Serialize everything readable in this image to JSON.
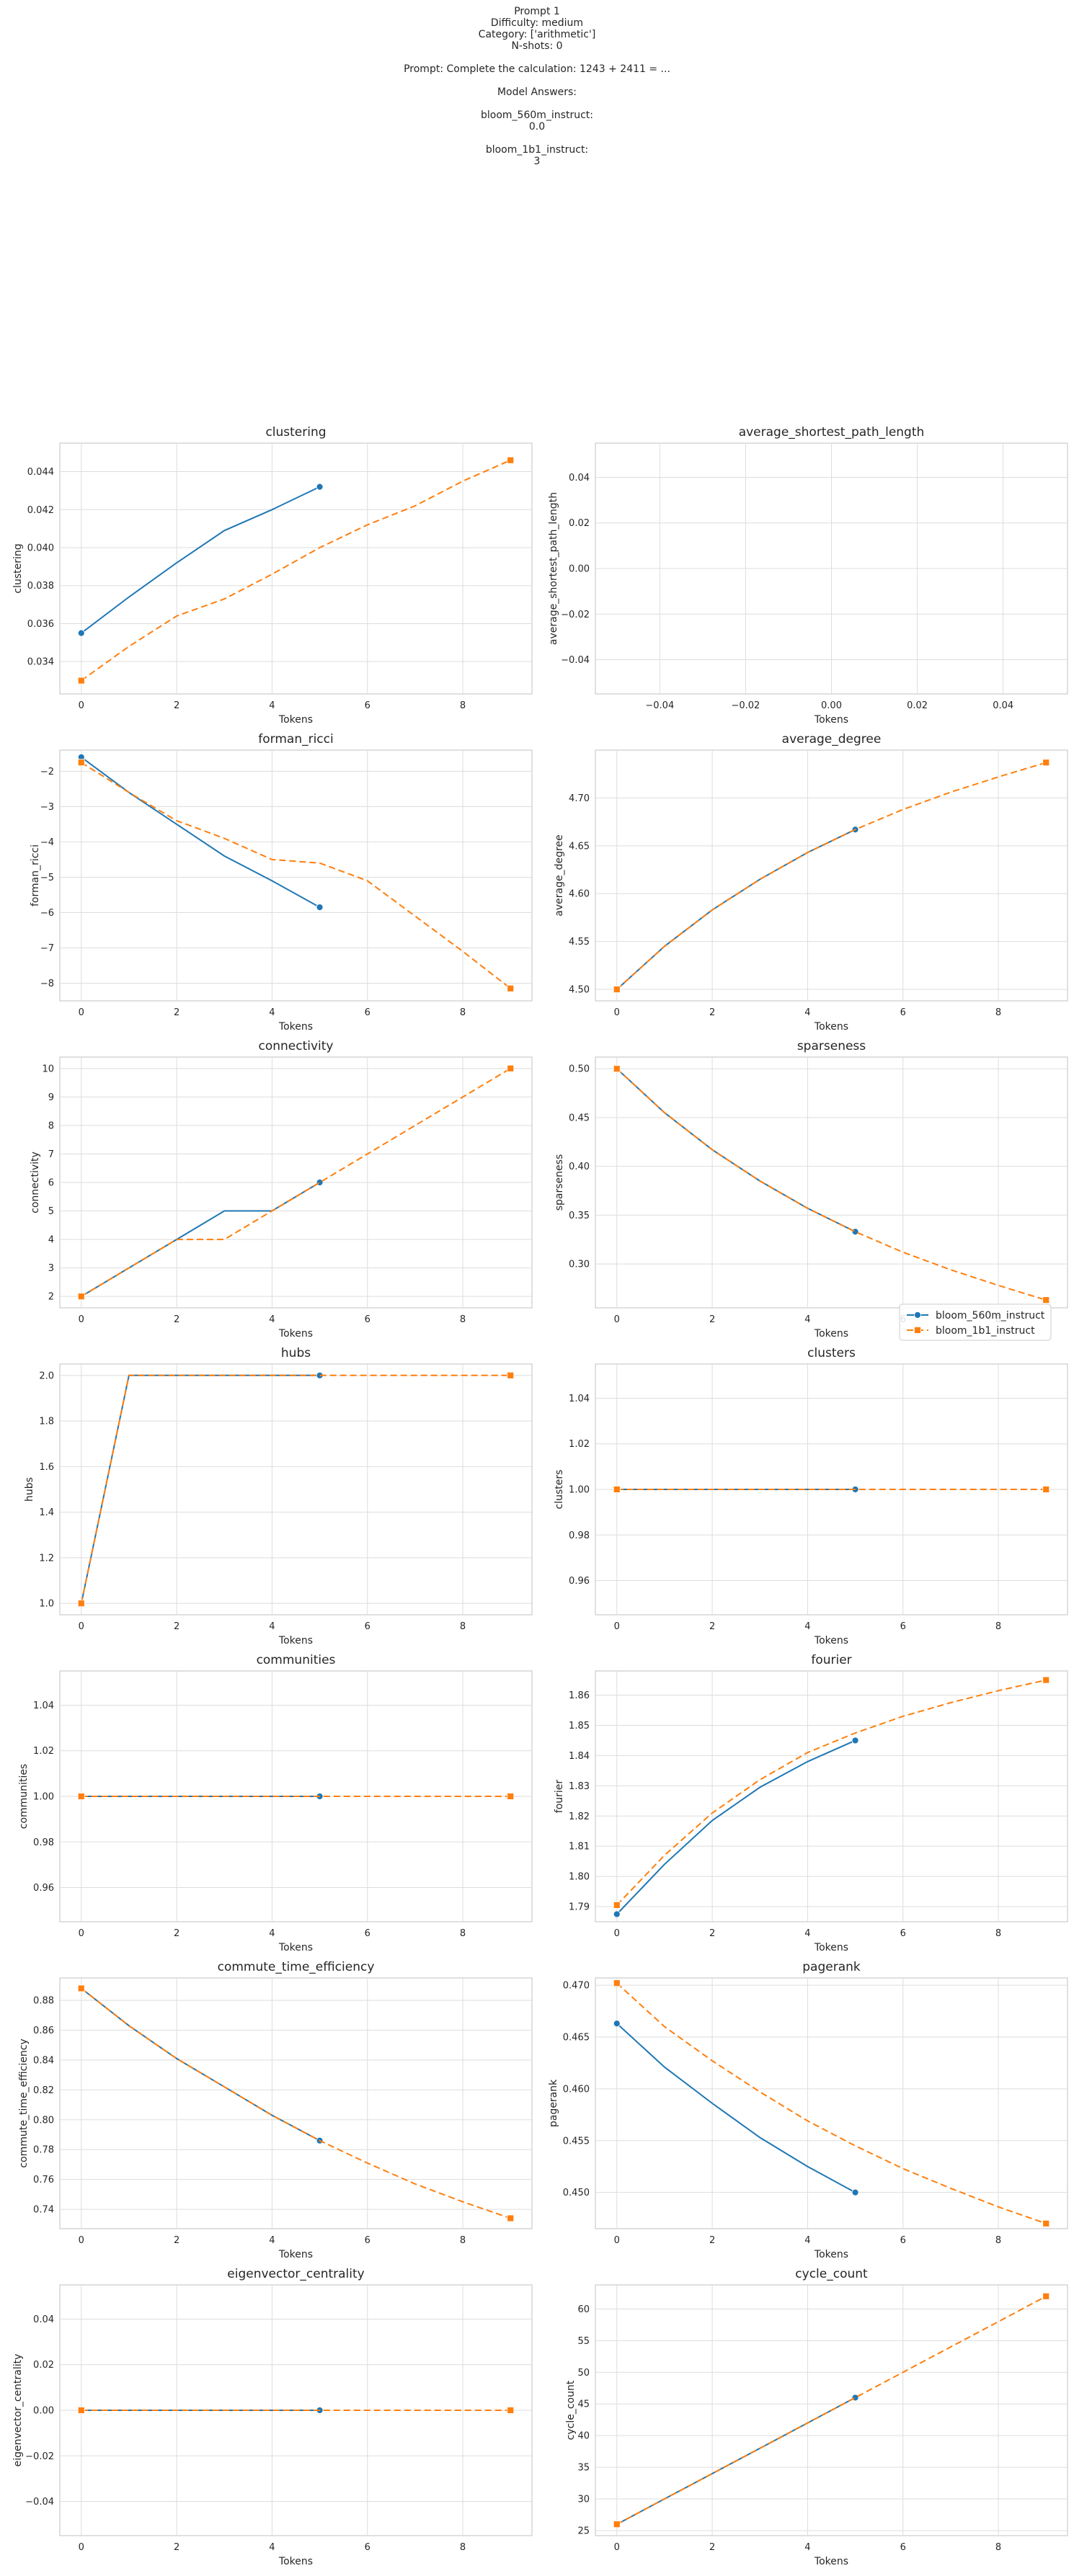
{
  "header": {
    "line1": "Prompt 1",
    "line2": "Difficulty: medium",
    "line3": "Category: ['arithmetic']",
    "line4": "N-shots: 0",
    "line5": "Prompt: Complete the calculation: 1243 + 2411 = ...",
    "line6": "Model Answers:",
    "line7": "bloom_560m_instruct:",
    "line8": "0.0",
    "line9": "bloom_1b1_instruct:",
    "line10": "3"
  },
  "colors": {
    "series1": "#1f77b4",
    "series2": "#ff7f0e",
    "grid": "#dddddd",
    "axes_border": "#cccccc"
  },
  "legend": {
    "placement": "lower-right of sparseness",
    "entries": [
      "bloom_560m_instruct",
      "bloom_1b1_instruct"
    ]
  },
  "chart_data": [
    {
      "type": "line",
      "title": "clustering",
      "xlabel": "Tokens",
      "ylabel": "clustering",
      "xlim": [
        -0.45,
        9.45
      ],
      "ylim": [
        0.0323,
        0.0455
      ],
      "xticks": [
        0,
        2,
        4,
        6,
        8
      ],
      "yticks": [
        0.034,
        0.036,
        0.038,
        0.04,
        0.042,
        0.044
      ],
      "yticklabels": [
        "0.034",
        "0.036",
        "0.038",
        "0.040",
        "0.042",
        "0.044"
      ],
      "series": [
        {
          "name": "bloom_560m_instruct",
          "x": [
            0,
            1,
            2,
            3,
            4,
            5
          ],
          "y": [
            0.0355,
            0.0374,
            0.0392,
            0.0409,
            0.042,
            0.0432
          ]
        },
        {
          "name": "bloom_1b1_instruct",
          "x": [
            0,
            1,
            2,
            3,
            4,
            5,
            6,
            7,
            8,
            9
          ],
          "y": [
            0.033,
            0.0348,
            0.0364,
            0.0373,
            0.0386,
            0.04,
            0.0412,
            0.0422,
            0.0435,
            0.0446
          ]
        }
      ]
    },
    {
      "type": "line",
      "title": "average_shortest_path_length",
      "xlabel": "Tokens",
      "ylabel": "average_shortest_path_length",
      "xlim": [
        -0.055,
        0.055
      ],
      "ylim": [
        -0.055,
        0.055
      ],
      "xticks": [
        -0.04,
        -0.02,
        0,
        0.02,
        0.04
      ],
      "xticklabels": [
        "−0.04",
        "−0.02",
        "0.00",
        "0.02",
        "0.04"
      ],
      "yticks": [
        -0.04,
        -0.02,
        0,
        0.02,
        0.04
      ],
      "yticklabels": [
        "−0.04",
        "−0.02",
        "0.00",
        "0.02",
        "0.04"
      ],
      "series": []
    },
    {
      "type": "line",
      "title": "forman_ricci",
      "xlabel": "Tokens",
      "ylabel": "forman_ricci",
      "xlim": [
        -0.45,
        9.45
      ],
      "ylim": [
        -8.5,
        -1.4
      ],
      "xticks": [
        0,
        2,
        4,
        6,
        8
      ],
      "yticks": [
        -8,
        -7,
        -6,
        -5,
        -4,
        -3,
        -2
      ],
      "yticklabels": [
        "−8",
        "−7",
        "−6",
        "−5",
        "−4",
        "−3",
        "−2"
      ],
      "series": [
        {
          "name": "bloom_560m_instruct",
          "x": [
            0,
            1,
            2,
            3,
            4,
            5
          ],
          "y": [
            -1.6,
            -2.6,
            -3.5,
            -4.4,
            -5.1,
            -5.85
          ]
        },
        {
          "name": "bloom_1b1_instruct",
          "x": [
            0,
            1,
            2,
            3,
            4,
            5,
            6,
            7,
            8,
            9
          ],
          "y": [
            -1.75,
            -2.6,
            -3.4,
            -3.9,
            -4.5,
            -4.6,
            -5.1,
            -6.1,
            -7.1,
            -8.15
          ]
        }
      ]
    },
    {
      "type": "line",
      "title": "average_degree",
      "xlabel": "Tokens",
      "ylabel": "average_degree",
      "xlim": [
        -0.45,
        9.45
      ],
      "ylim": [
        4.488,
        4.75
      ],
      "xticks": [
        0,
        2,
        4,
        6,
        8
      ],
      "yticks": [
        4.5,
        4.55,
        4.6,
        4.65,
        4.7
      ],
      "yticklabels": [
        "4.50",
        "4.55",
        "4.60",
        "4.65",
        "4.70"
      ],
      "series": [
        {
          "name": "bloom_560m_instruct",
          "x": [
            0,
            1,
            2,
            3,
            4,
            5
          ],
          "y": [
            4.5,
            4.545,
            4.583,
            4.615,
            4.643,
            4.667
          ]
        },
        {
          "name": "bloom_1b1_instruct",
          "x": [
            0,
            1,
            2,
            3,
            4,
            5,
            6,
            7,
            8,
            9
          ],
          "y": [
            4.5,
            4.545,
            4.583,
            4.615,
            4.643,
            4.667,
            4.688,
            4.706,
            4.722,
            4.737
          ]
        }
      ]
    },
    {
      "type": "line",
      "title": "connectivity",
      "xlabel": "Tokens",
      "ylabel": "connectivity",
      "xlim": [
        -0.45,
        9.45
      ],
      "ylim": [
        1.6,
        10.4
      ],
      "xticks": [
        0,
        2,
        4,
        6,
        8
      ],
      "yticks": [
        2,
        3,
        4,
        5,
        6,
        7,
        8,
        9,
        10
      ],
      "series": [
        {
          "name": "bloom_560m_instruct",
          "x": [
            0,
            1,
            2,
            3,
            4,
            5
          ],
          "y": [
            2,
            3,
            4,
            5,
            5,
            6
          ]
        },
        {
          "name": "bloom_1b1_instruct",
          "x": [
            0,
            1,
            2,
            3,
            4,
            5,
            6,
            7,
            8,
            9
          ],
          "y": [
            2,
            3,
            4,
            4,
            5,
            6,
            7,
            8,
            9,
            10
          ]
        }
      ]
    },
    {
      "type": "line",
      "title": "sparseness",
      "xlabel": "Tokens",
      "ylabel": "sparseness",
      "xlim": [
        -0.45,
        9.45
      ],
      "ylim": [
        0.255,
        0.512
      ],
      "xticks": [
        0,
        2,
        4,
        6,
        8
      ],
      "yticks": [
        0.3,
        0.35,
        0.4,
        0.45,
        0.5
      ],
      "yticklabels": [
        "0.30",
        "0.35",
        "0.40",
        "0.45",
        "0.50"
      ],
      "series": [
        {
          "name": "bloom_560m_instruct",
          "x": [
            0,
            1,
            2,
            3,
            4,
            5
          ],
          "y": [
            0.5,
            0.455,
            0.417,
            0.385,
            0.357,
            0.333
          ]
        },
        {
          "name": "bloom_1b1_instruct",
          "x": [
            0,
            1,
            2,
            3,
            4,
            5,
            6,
            7,
            8,
            9
          ],
          "y": [
            0.5,
            0.455,
            0.417,
            0.385,
            0.357,
            0.333,
            0.312,
            0.294,
            0.278,
            0.263
          ]
        }
      ]
    },
    {
      "type": "line",
      "title": "hubs",
      "xlabel": "Tokens",
      "ylabel": "hubs",
      "xlim": [
        -0.45,
        9.45
      ],
      "ylim": [
        0.95,
        2.05
      ],
      "xticks": [
        0,
        2,
        4,
        6,
        8
      ],
      "yticks": [
        1.0,
        1.2,
        1.4,
        1.6,
        1.8,
        2.0
      ],
      "yticklabels": [
        "1.0",
        "1.2",
        "1.4",
        "1.6",
        "1.8",
        "2.0"
      ],
      "series": [
        {
          "name": "bloom_560m_instruct",
          "x": [
            0,
            1,
            2,
            3,
            4,
            5
          ],
          "y": [
            1,
            2,
            2,
            2,
            2,
            2
          ]
        },
        {
          "name": "bloom_1b1_instruct",
          "x": [
            0,
            1,
            2,
            3,
            4,
            5,
            6,
            7,
            8,
            9
          ],
          "y": [
            1,
            2,
            2,
            2,
            2,
            2,
            2,
            2,
            2,
            2
          ]
        }
      ]
    },
    {
      "type": "line",
      "title": "clusters",
      "xlabel": "Tokens",
      "ylabel": "clusters",
      "xlim": [
        -0.45,
        9.45
      ],
      "ylim": [
        0.945,
        1.055
      ],
      "xticks": [
        0,
        2,
        4,
        6,
        8
      ],
      "yticks": [
        0.96,
        0.98,
        1.0,
        1.02,
        1.04
      ],
      "yticklabels": [
        "0.96",
        "0.98",
        "1.00",
        "1.02",
        "1.04"
      ],
      "series": [
        {
          "name": "bloom_560m_instruct",
          "x": [
            0,
            1,
            2,
            3,
            4,
            5
          ],
          "y": [
            1,
            1,
            1,
            1,
            1,
            1
          ]
        },
        {
          "name": "bloom_1b1_instruct",
          "x": [
            0,
            1,
            2,
            3,
            4,
            5,
            6,
            7,
            8,
            9
          ],
          "y": [
            1,
            1,
            1,
            1,
            1,
            1,
            1,
            1,
            1,
            1
          ]
        }
      ]
    },
    {
      "type": "line",
      "title": "communities",
      "xlabel": "Tokens",
      "ylabel": "communities",
      "xlim": [
        -0.45,
        9.45
      ],
      "ylim": [
        0.945,
        1.055
      ],
      "xticks": [
        0,
        2,
        4,
        6,
        8
      ],
      "yticks": [
        0.96,
        0.98,
        1.0,
        1.02,
        1.04
      ],
      "yticklabels": [
        "0.96",
        "0.98",
        "1.00",
        "1.02",
        "1.04"
      ],
      "series": [
        {
          "name": "bloom_560m_instruct",
          "x": [
            0,
            1,
            2,
            3,
            4,
            5
          ],
          "y": [
            1,
            1,
            1,
            1,
            1,
            1
          ]
        },
        {
          "name": "bloom_1b1_instruct",
          "x": [
            0,
            1,
            2,
            3,
            4,
            5,
            6,
            7,
            8,
            9
          ],
          "y": [
            1,
            1,
            1,
            1,
            1,
            1,
            1,
            1,
            1,
            1
          ]
        }
      ]
    },
    {
      "type": "line",
      "title": "fourier",
      "xlabel": "Tokens",
      "ylabel": "fourier",
      "xlim": [
        -0.45,
        9.45
      ],
      "ylim": [
        1.785,
        1.868
      ],
      "xticks": [
        0,
        2,
        4,
        6,
        8
      ],
      "yticks": [
        1.79,
        1.8,
        1.81,
        1.82,
        1.83,
        1.84,
        1.85,
        1.86
      ],
      "yticklabels": [
        "1.79",
        "1.80",
        "1.81",
        "1.82",
        "1.83",
        "1.84",
        "1.85",
        "1.86"
      ],
      "series": [
        {
          "name": "bloom_560m_instruct",
          "x": [
            0,
            1,
            2,
            3,
            4,
            5
          ],
          "y": [
            1.7875,
            1.804,
            1.8185,
            1.8295,
            1.838,
            1.845
          ]
        },
        {
          "name": "bloom_1b1_instruct",
          "x": [
            0,
            1,
            2,
            3,
            4,
            5,
            6,
            7,
            8,
            9
          ],
          "y": [
            1.7905,
            1.807,
            1.821,
            1.832,
            1.841,
            1.8475,
            1.853,
            1.8575,
            1.8615,
            1.865
          ]
        }
      ]
    },
    {
      "type": "line",
      "title": "commute_time_efficiency",
      "xlabel": "Tokens",
      "ylabel": "commute_time_efficiency",
      "xlim": [
        -0.45,
        9.45
      ],
      "ylim": [
        0.727,
        0.895
      ],
      "xticks": [
        0,
        2,
        4,
        6,
        8
      ],
      "yticks": [
        0.74,
        0.76,
        0.78,
        0.8,
        0.82,
        0.84,
        0.86,
        0.88
      ],
      "yticklabels": [
        "0.74",
        "0.76",
        "0.78",
        "0.80",
        "0.82",
        "0.84",
        "0.86",
        "0.88"
      ],
      "series": [
        {
          "name": "bloom_560m_instruct",
          "x": [
            0,
            1,
            2,
            3,
            4,
            5
          ],
          "y": [
            0.888,
            0.863,
            0.841,
            0.822,
            0.803,
            0.786
          ]
        },
        {
          "name": "bloom_1b1_instruct",
          "x": [
            0,
            1,
            2,
            3,
            4,
            5,
            6,
            7,
            8,
            9
          ],
          "y": [
            0.888,
            0.863,
            0.841,
            0.822,
            0.803,
            0.786,
            0.771,
            0.757,
            0.745,
            0.734
          ]
        }
      ]
    },
    {
      "type": "line",
      "title": "pagerank",
      "xlabel": "Tokens",
      "ylabel": "pagerank",
      "xlim": [
        -0.45,
        9.45
      ],
      "ylim": [
        0.4465,
        0.4707
      ],
      "xticks": [
        0,
        2,
        4,
        6,
        8
      ],
      "yticks": [
        0.45,
        0.455,
        0.46,
        0.465,
        0.47
      ],
      "yticklabels": [
        "0.450",
        "0.455",
        "0.460",
        "0.465",
        "0.470"
      ],
      "series": [
        {
          "name": "bloom_560m_instruct",
          "x": [
            0,
            1,
            2,
            3,
            4,
            5
          ],
          "y": [
            0.4663,
            0.4621,
            0.4586,
            0.4553,
            0.4525,
            0.45
          ]
        },
        {
          "name": "bloom_1b1_instruct",
          "x": [
            0,
            1,
            2,
            3,
            4,
            5,
            6,
            7,
            8,
            9
          ],
          "y": [
            0.4702,
            0.466,
            0.4627,
            0.4597,
            0.4569,
            0.4545,
            0.4523,
            0.4504,
            0.4486,
            0.447
          ]
        }
      ]
    },
    {
      "type": "line",
      "title": "eigenvector_centrality",
      "xlabel": "Tokens",
      "ylabel": "eigenvector_centrality",
      "xlim": [
        -0.45,
        9.45
      ],
      "ylim": [
        -0.055,
        0.055
      ],
      "xticks": [
        0,
        2,
        4,
        6,
        8
      ],
      "yticks": [
        -0.04,
        -0.02,
        0,
        0.02,
        0.04
      ],
      "yticklabels": [
        "−0.04",
        "−0.02",
        "0.00",
        "0.02",
        "0.04"
      ],
      "series": [
        {
          "name": "bloom_560m_instruct",
          "x": [
            0,
            1,
            2,
            3,
            4,
            5
          ],
          "y": [
            0,
            0,
            0,
            0,
            0,
            0
          ]
        },
        {
          "name": "bloom_1b1_instruct",
          "x": [
            0,
            1,
            2,
            3,
            4,
            5,
            6,
            7,
            8,
            9
          ],
          "y": [
            0,
            0,
            0,
            0,
            0,
            0,
            0,
            0,
            0,
            0
          ]
        }
      ]
    },
    {
      "type": "line",
      "title": "cycle_count",
      "xlabel": "Tokens",
      "ylabel": "cycle_count",
      "xlim": [
        -0.45,
        9.45
      ],
      "ylim": [
        24.2,
        63.8
      ],
      "xticks": [
        0,
        2,
        4,
        6,
        8
      ],
      "yticks": [
        25,
        30,
        35,
        40,
        45,
        50,
        55,
        60
      ],
      "series": [
        {
          "name": "bloom_560m_instruct",
          "x": [
            0,
            1,
            2,
            3,
            4,
            5
          ],
          "y": [
            26,
            30,
            34,
            38,
            42,
            46
          ]
        },
        {
          "name": "bloom_1b1_instruct",
          "x": [
            0,
            1,
            2,
            3,
            4,
            5,
            6,
            7,
            8,
            9
          ],
          "y": [
            26,
            30,
            34,
            38,
            42,
            46,
            50,
            54,
            58,
            62
          ]
        }
      ]
    }
  ]
}
